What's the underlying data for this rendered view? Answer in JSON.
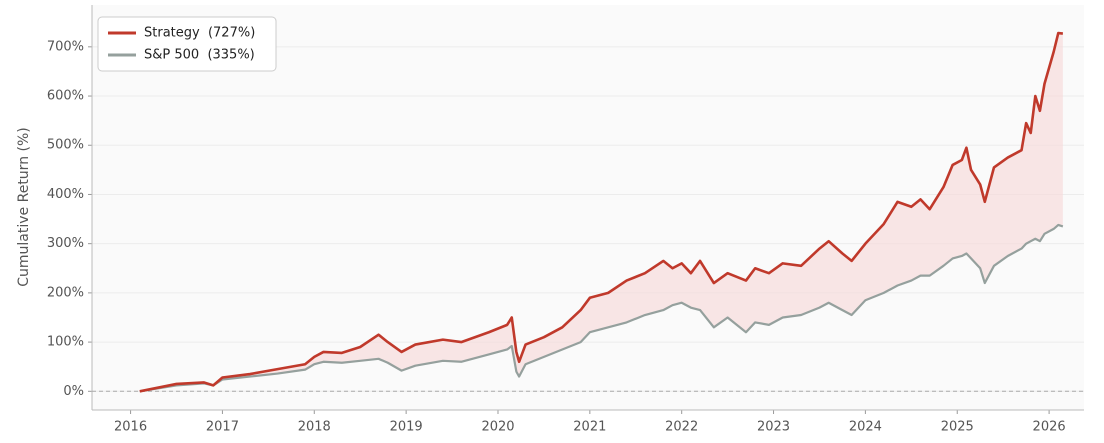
{
  "chart_data": {
    "type": "line",
    "y_label": "Cumulative Return (%)",
    "x": [
      2016.1,
      2016.5,
      2016.8,
      2016.9,
      2017.0,
      2017.3,
      2017.6,
      2017.9,
      2018.0,
      2018.1,
      2018.3,
      2018.5,
      2018.7,
      2018.8,
      2018.95,
      2019.1,
      2019.4,
      2019.6,
      2019.9,
      2020.1,
      2020.15,
      2020.2,
      2020.23,
      2020.3,
      2020.5,
      2020.7,
      2020.9,
      2021.0,
      2021.2,
      2021.4,
      2021.6,
      2021.8,
      2021.9,
      2022.0,
      2022.1,
      2022.2,
      2022.35,
      2022.5,
      2022.7,
      2022.8,
      2022.95,
      2023.1,
      2023.3,
      2023.5,
      2023.6,
      2023.75,
      2023.85,
      2024.0,
      2024.2,
      2024.35,
      2024.5,
      2024.6,
      2024.7,
      2024.85,
      2024.95,
      2025.05,
      2025.1,
      2025.15,
      2025.25,
      2025.3,
      2025.4,
      2025.55,
      2025.7,
      2025.75,
      2025.8,
      2025.85,
      2025.9,
      2025.95,
      2026.05,
      2026.1,
      2026.15
    ],
    "series": [
      {
        "name": "Strategy  (727%)",
        "color": "#c0392b",
        "values": [
          0,
          15,
          18,
          12,
          28,
          35,
          45,
          55,
          70,
          80,
          78,
          90,
          115,
          100,
          80,
          95,
          105,
          100,
          120,
          135,
          150,
          80,
          60,
          95,
          110,
          130,
          165,
          190,
          200,
          225,
          240,
          265,
          250,
          260,
          240,
          265,
          220,
          240,
          225,
          250,
          240,
          260,
          255,
          290,
          305,
          280,
          265,
          300,
          340,
          385,
          375,
          390,
          370,
          415,
          460,
          470,
          495,
          450,
          420,
          385,
          455,
          475,
          490,
          545,
          525,
          600,
          570,
          625,
          690,
          728,
          727
        ]
      },
      {
        "name": "S&P 500  (335%)",
        "color": "#95a09d",
        "values": [
          0,
          12,
          16,
          12,
          24,
          30,
          36,
          44,
          55,
          60,
          58,
          62,
          66,
          58,
          42,
          52,
          62,
          60,
          75,
          85,
          92,
          40,
          30,
          55,
          70,
          85,
          100,
          120,
          130,
          140,
          155,
          165,
          175,
          180,
          170,
          165,
          130,
          150,
          120,
          140,
          135,
          150,
          155,
          170,
          180,
          165,
          155,
          185,
          200,
          215,
          225,
          235,
          235,
          255,
          270,
          275,
          280,
          270,
          250,
          220,
          255,
          275,
          290,
          300,
          305,
          310,
          305,
          320,
          330,
          338,
          335
        ]
      }
    ],
    "fill_between": true,
    "fill_color": "#f6dcdc",
    "xlim": [
      2015.58,
      2026.38
    ],
    "xticks": [
      2016,
      2017,
      2018,
      2019,
      2020,
      2021,
      2022,
      2023,
      2024,
      2025,
      2026
    ],
    "ylim": [
      -38,
      785
    ],
    "yticks": [
      {
        "value": 0,
        "label": "0%"
      },
      {
        "value": 100,
        "label": "100%"
      },
      {
        "value": 200,
        "label": "200%"
      },
      {
        "value": 300,
        "label": "300%"
      },
      {
        "value": 400,
        "label": "400%"
      },
      {
        "value": 500,
        "label": "500%"
      },
      {
        "value": 600,
        "label": "600%"
      },
      {
        "value": 700,
        "label": "700%"
      }
    ],
    "grid": true,
    "zero_line": true,
    "legend": "upper-left"
  }
}
